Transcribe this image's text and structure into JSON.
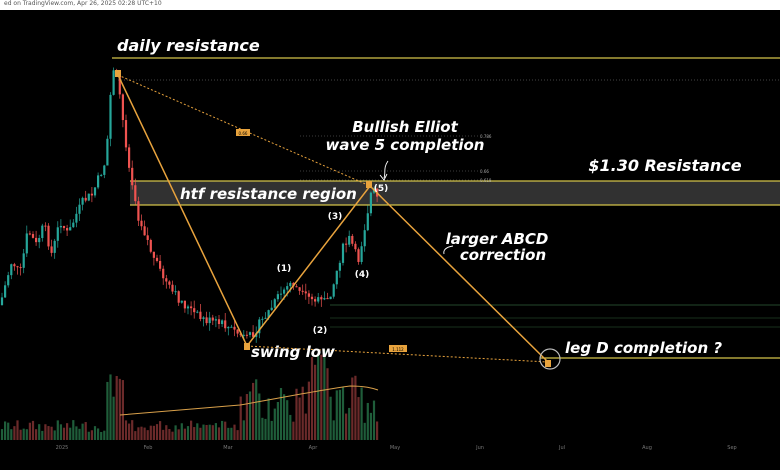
{
  "header": {
    "text": "ed on TradingView.com, Apr 26, 2025 02:28 UTC+10"
  },
  "chart_data": {
    "type": "candlestick-annotated",
    "x_ticks": [
      "2025",
      "Feb",
      "Mar",
      "Apr",
      "May",
      "Jun",
      "Jul",
      "Aug",
      "Sep"
    ],
    "annotations": {
      "daily_resistance": "daily resistance",
      "bullish_elliot_1": "Bullish Elliot",
      "bullish_elliot_2": "wave 5 completion",
      "resistance_130": "$1.30 Resistance",
      "htf_region": "htf resistance region",
      "larger_abcd_1": "larger ABCD",
      "larger_abcd_2": "correction",
      "swing_low": "swing low",
      "leg_d": "leg D completion ?"
    },
    "wave_labels": [
      "(1)",
      "(2)",
      "(3)",
      "(4)",
      "(5)"
    ],
    "fib_labels": {
      "f786": "0.786",
      "f66": "0.66",
      "f618": "0.618",
      "ratio_ab": "0.66",
      "ratio_cd": "1.112"
    },
    "colors": {
      "up": "#26a69a",
      "down": "#ef5350",
      "level": "#d4c44a",
      "pattern": "#e8a33d",
      "region": "#3a3a3a"
    }
  }
}
